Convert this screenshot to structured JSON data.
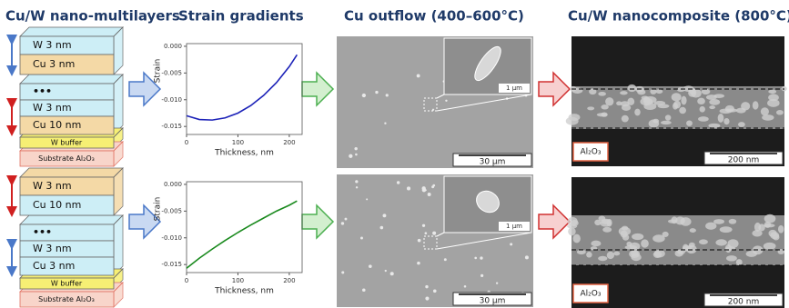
{
  "headers": [
    "Cu/W nano-multilayers",
    "Strain gradients",
    "Cu outflow (400–600°C)",
    "Cu/W nanocomposite (800°C)"
  ],
  "stacks": [
    {
      "layers": [
        "W 3 nm",
        "Cu 3 nm",
        "•••",
        "W 3 nm",
        "Cu 10 nm",
        "W buffer",
        "Substrate Al₂O₃"
      ]
    },
    {
      "layers": [
        "W 3 nm",
        "Cu 10 nm",
        "•••",
        "W 3 nm",
        "Cu 3 nm",
        "W buffer",
        "Substrate Al₂O₃"
      ]
    }
  ],
  "chart_data": [
    {
      "type": "line",
      "x_label": "Thickness, nm",
      "y_label": "Strain",
      "x": [
        0,
        25,
        50,
        75,
        100,
        125,
        150,
        175,
        200,
        215
      ],
      "series": [
        {
          "color": "#1c22b8",
          "values": [
            -0.013,
            -0.0137,
            -0.0138,
            -0.0134,
            -0.0125,
            -0.0111,
            -0.0092,
            -0.0068,
            -0.0038,
            -0.0016
          ]
        }
      ],
      "xlim": [
        0,
        225
      ],
      "ylim": [
        -0.0165,
        0.0005
      ],
      "xticks": [
        0,
        100,
        200
      ],
      "yticks": [
        {
          "value": 0,
          "label": "0.000"
        },
        -0.005,
        {
          "value": -0.01,
          "label": "-0.010"
        },
        -0.015
      ]
    },
    {
      "type": "line",
      "x_label": "Thickness, nm",
      "y_label": "Strain",
      "x": [
        0,
        25,
        50,
        75,
        100,
        125,
        150,
        175,
        200,
        215
      ],
      "series": [
        {
          "color": "#1a8a1e",
          "values": [
            -0.0157,
            -0.0138,
            -0.0121,
            -0.0105,
            -0.009,
            -0.0076,
            -0.0063,
            -0.005,
            -0.0039,
            -0.0031
          ]
        }
      ],
      "xlim": [
        0,
        225
      ],
      "ylim": [
        -0.0165,
        0.0005
      ],
      "xticks": [
        0,
        100,
        200
      ],
      "yticks": [
        {
          "value": 0,
          "label": "0.000"
        },
        -0.005,
        {
          "value": -0.01,
          "label": "-0.010"
        },
        -0.015
      ]
    }
  ],
  "sem": [
    {
      "scale": "30 µm",
      "inset_scale": "1 µm"
    },
    {
      "scale": "30 µm",
      "inset_scale": "1 µm"
    }
  ],
  "composite": [
    {
      "label": "Al₂O₃",
      "scale": "200 nm"
    },
    {
      "label": "Al₂O₃",
      "scale": "200 nm"
    }
  ]
}
